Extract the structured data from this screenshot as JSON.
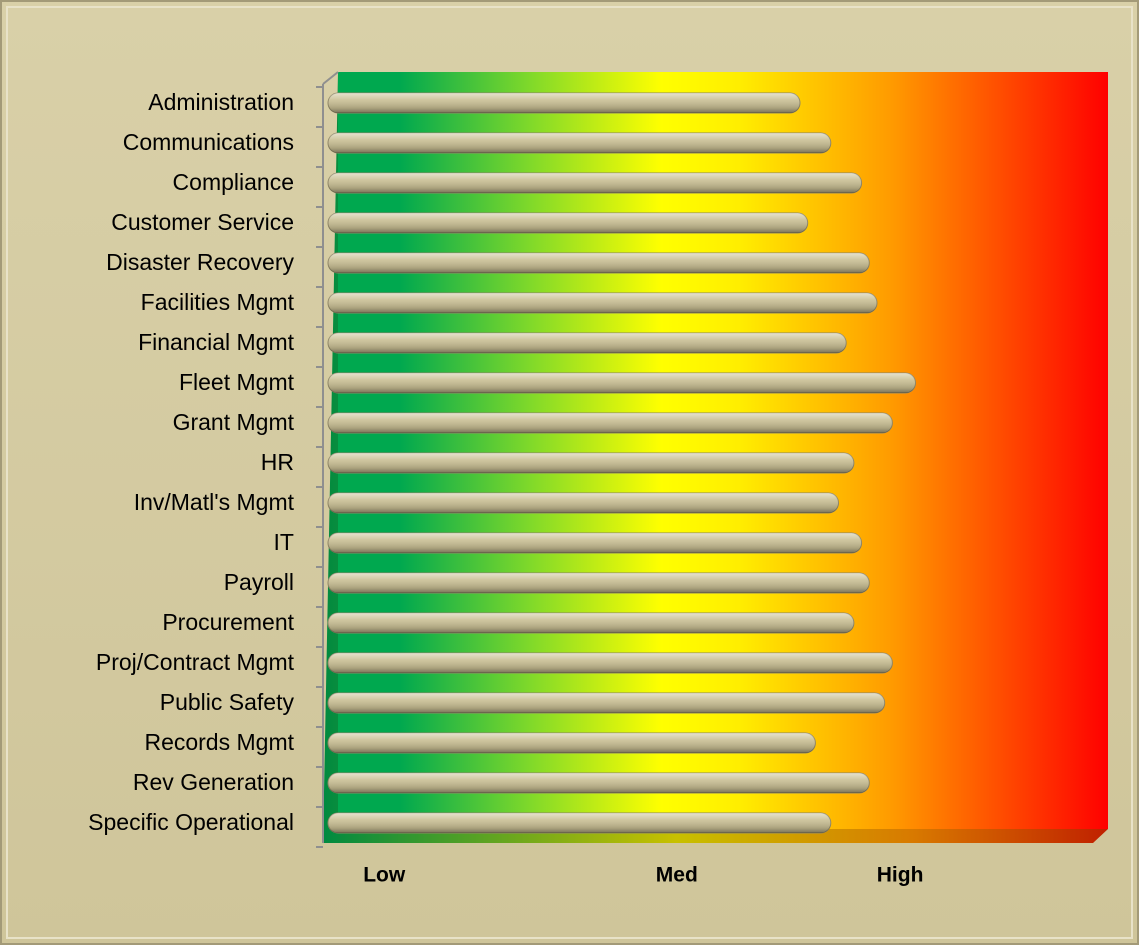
{
  "chart_data": {
    "type": "bar",
    "orientation": "horizontal",
    "categories": [
      "Administration",
      "Communications",
      "Compliance",
      "Customer Service",
      "Disaster Recovery",
      "Facilities Mgmt",
      "Financial Mgmt",
      "Fleet Mgmt",
      "Grant Mgmt",
      "HR",
      "Inv/Matl's Mgmt",
      "IT",
      "Payroll",
      "Procurement",
      "Proj/Contract Mgmt",
      "Public Safety",
      "Records Mgmt",
      "Rev Generation",
      "Specific Operational"
    ],
    "values": [
      60,
      64,
      68,
      61,
      69,
      70,
      66,
      75,
      72,
      67,
      65,
      68,
      69,
      67,
      72,
      71,
      62,
      69,
      64
    ],
    "color": "#c9bf94",
    "xlim": [
      0,
      100
    ],
    "xticks": [
      {
        "value": 6,
        "label": "Low"
      },
      {
        "value": 44,
        "label": "Med"
      },
      {
        "value": 73,
        "label": "High"
      }
    ]
  }
}
